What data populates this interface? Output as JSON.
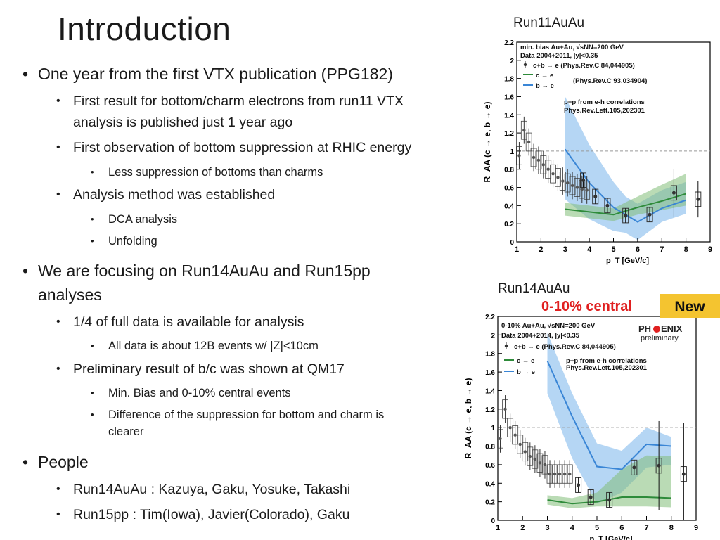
{
  "slide": {
    "title": "Introduction",
    "bullets": [
      {
        "text": "One year from the first VTX publication (PPG182)"
      },
      {
        "text": "First result for bottom/charm electrons from run11 VTX"
      },
      {
        "text": "analysis is published just 1 year ago"
      },
      {
        "text": "First observation of bottom suppression at RHIC energy"
      },
      {
        "text": "Less suppression of bottoms than charms"
      },
      {
        "text": "Analysis method was established"
      },
      {
        "text": "DCA analysis"
      },
      {
        "text": "Unfolding"
      },
      {
        "text": "We are focusing on Run14AuAu and Run15pp"
      },
      {
        "text": "analyses"
      },
      {
        "text": "1/4 of full data is available for analysis"
      },
      {
        "text": "All data is about 12B events  w/ |Z|<10cm"
      },
      {
        "text": "Preliminary result of b/c was shown at QM17"
      },
      {
        "text": "Min. Bias and 0-10% central events"
      },
      {
        "text": "Difference of the suppression for bottom and charm is"
      },
      {
        "text": "clearer"
      },
      {
        "text": "People"
      },
      {
        "text": "Run14AuAu : Kazuya, Gaku, Yosuke, Takashi"
      },
      {
        "text": "Run15pp : Tim(Iowa), Javier(Colorado), Gaku"
      }
    ],
    "bullet_glyph": "•"
  },
  "figures": {
    "top": {
      "title": "Run11AuAu"
    },
    "bottom": {
      "title": "Run14AuAu",
      "central_label": "0-10% central",
      "new_badge": "New",
      "logo_line1": "PH",
      "logo_line2": "ENIX",
      "logo_prelim": "preliminary"
    }
  },
  "chart_data": [
    {
      "type": "scatter",
      "title": "Run11AuAu",
      "xlabel": "p_T [GeV/c]",
      "ylabel": "R_AA (c → e, b → e)",
      "xlim": [
        1,
        9
      ],
      "ylim": [
        0,
        2.2
      ],
      "xticks": [
        "1",
        "2",
        "3",
        "4",
        "5",
        "6",
        "7",
        "8",
        "9"
      ],
      "yticks": [
        "0",
        "0.2",
        "0.4",
        "0.6",
        "0.8",
        "1",
        "1.2",
        "1.4",
        "1.6",
        "1.8",
        "2",
        "2.2"
      ],
      "legend": [
        "min. bias Au+Au, √sNN=200 GeV",
        "Data 2004+2011, |y|<0.35",
        "c+b → e  (Phys.Rev.C 84,044905)",
        "c → e",
        "b → e",
        "(Phys.Rev.C 93,034904)",
        "p+p from e-h correlations",
        "Phys.Rev.Lett.105,202301"
      ],
      "series": [
        {
          "name": "c+b → e",
          "x": [
            1.1,
            1.3,
            1.5,
            1.7,
            1.9,
            2.1,
            2.3,
            2.5,
            2.7,
            2.9,
            3.1,
            3.3,
            3.5,
            3.7,
            3.9
          ],
          "y": [
            0.95,
            1.23,
            1.1,
            0.93,
            0.9,
            0.85,
            0.8,
            0.75,
            0.71,
            0.67,
            0.65,
            0.62,
            0.6,
            0.58,
            0.57
          ]
        },
        {
          "name": "b/c points",
          "x": [
            3.75,
            4.25,
            4.75,
            5.5,
            6.5,
            7.5,
            8.5
          ],
          "y": [
            0.68,
            0.5,
            0.4,
            0.29,
            0.3,
            0.54,
            0.47
          ]
        },
        {
          "name": "c → e",
          "x": [
            3,
            4,
            5,
            6,
            7,
            8
          ],
          "y": [
            0.36,
            0.33,
            0.3,
            0.38,
            0.45,
            0.53
          ]
        },
        {
          "name": "b → e",
          "x": [
            3,
            4,
            5,
            5.5,
            6,
            7,
            8
          ],
          "y": [
            1.02,
            0.65,
            0.38,
            0.3,
            0.22,
            0.37,
            0.46
          ]
        }
      ]
    },
    {
      "type": "scatter",
      "title": "Run14AuAu",
      "xlabel": "p_T [GeV/c]",
      "ylabel": "R_AA (c → e, b → e)",
      "xlim": [
        1,
        9
      ],
      "ylim": [
        0,
        2.2
      ],
      "xticks": [
        "1",
        "2",
        "3",
        "4",
        "5",
        "6",
        "7",
        "8",
        "9"
      ],
      "yticks": [
        "0",
        "0.2",
        "0.4",
        "0.6",
        "0.8",
        "1",
        "1.2",
        "1.4",
        "1.6",
        "1.8",
        "2",
        "2.2"
      ],
      "legend": [
        "0-10% Au+Au, √sNN=200 GeV",
        "Data 2004+2014, |y|<0.35",
        "c+b → e  (Phys.Rev.C 84,044905)",
        "c → e",
        "b → e",
        "p+p from e-h correlations",
        "Phys.Rev.Lett.105,202301"
      ],
      "series": [
        {
          "name": "c+b → e",
          "x": [
            1.1,
            1.3,
            1.5,
            1.7,
            1.9,
            2.1,
            2.3,
            2.5,
            2.7,
            2.9,
            3.1,
            3.3,
            3.5,
            3.7,
            3.9
          ],
          "y": [
            0.88,
            1.2,
            1.0,
            0.92,
            0.82,
            0.74,
            0.69,
            0.66,
            0.62,
            0.6,
            0.5,
            0.5,
            0.5,
            0.5,
            0.5
          ]
        },
        {
          "name": "b/c points",
          "x": [
            4.25,
            4.75,
            5.5,
            6.5,
            7.5,
            8.5
          ],
          "y": [
            0.38,
            0.25,
            0.22,
            0.57,
            0.59,
            0.5
          ]
        },
        {
          "name": "c → e",
          "x": [
            3,
            4,
            5,
            6,
            7,
            8
          ],
          "y": [
            0.22,
            0.18,
            0.2,
            0.25,
            0.25,
            0.24
          ]
        },
        {
          "name": "b → e",
          "x": [
            3,
            4,
            5,
            6,
            7,
            8
          ],
          "y": [
            1.72,
            1.12,
            0.58,
            0.55,
            0.82,
            0.8
          ]
        }
      ]
    }
  ]
}
